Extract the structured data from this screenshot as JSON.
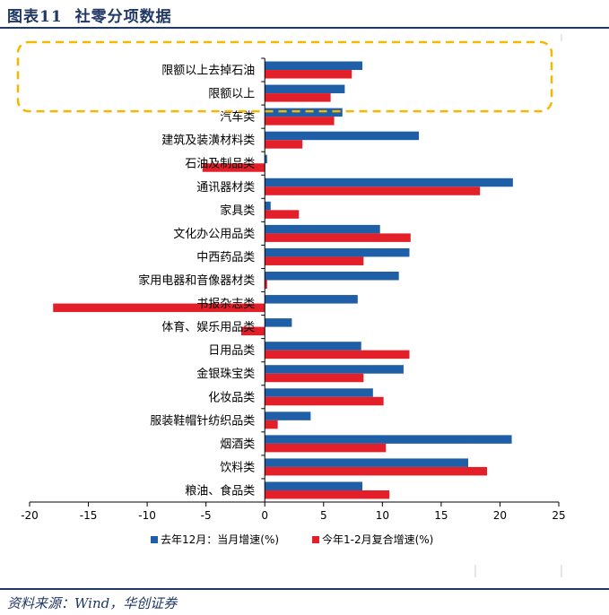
{
  "figure_title": {
    "number": "图表11",
    "text": "社零分项数据"
  },
  "source_note": "资料来源：Wind，华创证券",
  "chart_data": {
    "type": "bar",
    "orientation": "horizontal",
    "categories": [
      "限额以上去掉石油",
      "限额以上",
      "汽车类",
      "建筑及装潢材料类",
      "石油及制品类",
      "通讯器材类",
      "家具类",
      "文化办公用品类",
      "中西药品类",
      "家用电器和音像器材类",
      "书报杂志类",
      "体育、娱乐用品类",
      "日用品类",
      "金银珠宝类",
      "化妆品类",
      "服装鞋帽针纺织品类",
      "烟酒类",
      "饮料类",
      "粮油、食品类"
    ],
    "series": [
      {
        "name": "去年12月：当月增速(%)",
        "color": "#1f5fa8",
        "values": [
          8.3,
          6.8,
          6.6,
          13.1,
          0.2,
          21.1,
          0.5,
          9.8,
          12.3,
          11.4,
          7.9,
          2.3,
          8.2,
          11.8,
          9.2,
          3.9,
          21.0,
          17.3,
          8.3
        ]
      },
      {
        "name": "今年1-2月复合增速(%)",
        "color": "#e3202a",
        "values": [
          7.4,
          5.6,
          5.9,
          3.2,
          -5.3,
          18.3,
          2.9,
          12.4,
          8.4,
          0.2,
          -18.0,
          -2.0,
          12.3,
          8.4,
          10.1,
          1.1,
          10.3,
          18.9,
          10.6
        ]
      }
    ],
    "xlim": [
      -20,
      25
    ],
    "xticks": [
      -20,
      -15,
      -10,
      -5,
      0,
      5,
      10,
      15,
      20,
      25
    ],
    "grid": false,
    "legend_position": "bottom",
    "highlight": {
      "categories": [
        "限额以上去掉石油",
        "限额以上"
      ],
      "style": "dashed-rounded-box",
      "color": "#f5b800"
    }
  }
}
